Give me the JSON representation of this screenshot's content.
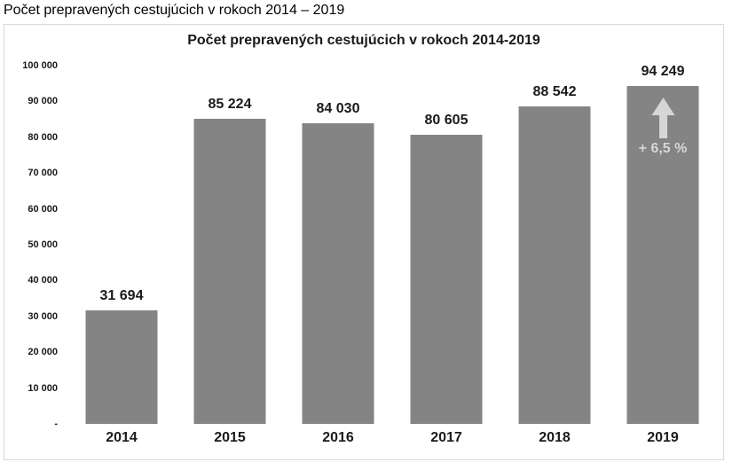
{
  "page": {
    "title": "Počet prepravených cestujúcich v rokoch 2014 – 2019"
  },
  "chart_data": {
    "type": "bar",
    "title": "Počet prepravených cestujúcich v rokoch 2014-2019",
    "categories": [
      "2014",
      "2015",
      "2016",
      "2017",
      "2018",
      "2019"
    ],
    "values": [
      31694,
      85224,
      84030,
      80605,
      88542,
      94249
    ],
    "value_labels": [
      "31 694",
      "85 224",
      "84 030",
      "80 605",
      "88 542",
      "94 249"
    ],
    "xlabel": "",
    "ylabel": "",
    "ylim": [
      0,
      100000
    ],
    "ytick_step": 10000,
    "ytick_labels": [
      "-",
      "10 000",
      "20 000",
      "30 000",
      "40 000",
      "50 000",
      "60 000",
      "70 000",
      "80 000",
      "90 000",
      "100 000"
    ],
    "grid": false,
    "legend": null,
    "bar_color": "#848484",
    "annotation": {
      "category": "2019",
      "icon": "up-arrow",
      "label": "+ 6,5 %",
      "color": "#d6d6d6"
    }
  }
}
